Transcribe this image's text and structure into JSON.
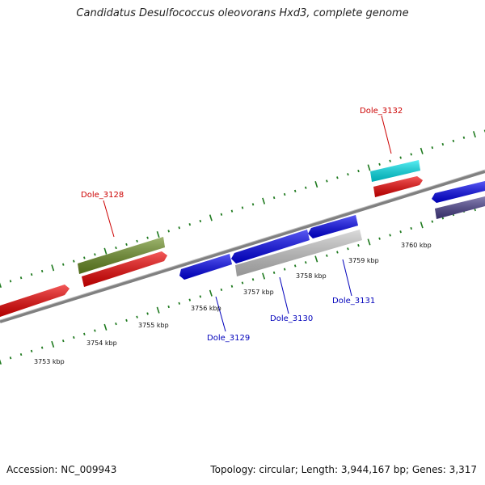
{
  "title": "Candidatus Desulfococcus oleovorans Hxd3, complete genome",
  "footer": {
    "accession": "Accession: NC_009943",
    "summary": "Topology: circular; Length: 3,944,167 bp; Genes: 3,317"
  },
  "colors": {
    "backbone": "#808080",
    "ticks": "#1f7a1f",
    "forward_label": "#cc0000",
    "reverse_label": "#0000bb"
  },
  "gene_labels": [
    {
      "name": "Dole_3128",
      "color": "#cc0000"
    },
    {
      "name": "Dole_3132",
      "color": "#cc0000"
    },
    {
      "name": "Dole_3129",
      "color": "#0000bb"
    },
    {
      "name": "Dole_3130",
      "color": "#0000bb"
    },
    {
      "name": "Dole_3131",
      "color": "#0000bb"
    }
  ],
  "kbp_labels": [
    "3753 kbp",
    "3754 kbp",
    "3755 kbp",
    "3756 kbp",
    "3757 kbp",
    "3758 kbp",
    "3759 kbp",
    "3760 kbp"
  ]
}
